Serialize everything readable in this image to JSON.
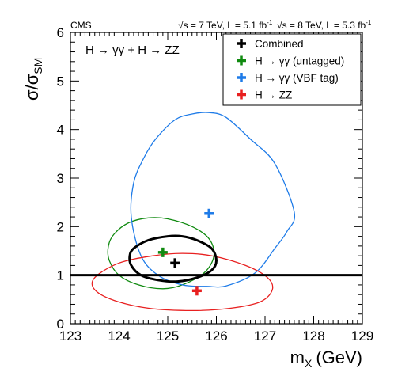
{
  "header": {
    "experiment": "CMS",
    "lumi_7tev": "√s = 7 TeV, L = 5.1 fb",
    "lumi_8tev": "√s = 8 TeV, L = 5.3 fb",
    "lumi_sup": "-1"
  },
  "annotation": "H → γγ + H → ZZ",
  "chart_data": {
    "type": "scatter",
    "title": "",
    "xlabel": "m",
    "xlabel_sub": "X",
    "xlabel_unit": "(GeV)",
    "ylabel": "σ/σ",
    "ylabel_sub": "SM",
    "xlim": [
      123,
      129
    ],
    "ylim": [
      0,
      6
    ],
    "xticks": [
      "123",
      "124",
      "125",
      "126",
      "127",
      "128",
      "129"
    ],
    "yticks": [
      "0",
      "1",
      "2",
      "3",
      "4",
      "5",
      "6"
    ],
    "reference_line_y": 1,
    "legend_position": "top-right",
    "series": [
      {
        "name": "Combined",
        "color": "#000000",
        "point": [
          125.15,
          1.25
        ],
        "contour": [
          [
            124.3,
            1.55
          ],
          [
            124.6,
            1.72
          ],
          [
            125.0,
            1.8
          ],
          [
            125.3,
            1.8
          ],
          [
            125.6,
            1.72
          ],
          [
            125.9,
            1.55
          ],
          [
            126.0,
            1.3
          ],
          [
            125.9,
            1.1
          ],
          [
            125.6,
            0.95
          ],
          [
            125.2,
            0.87
          ],
          [
            124.8,
            0.9
          ],
          [
            124.45,
            1.0
          ],
          [
            124.25,
            1.2
          ],
          [
            124.22,
            1.4
          ]
        ]
      },
      {
        "name": "H → γγ (untagged)",
        "color": "#108A10",
        "point": [
          124.9,
          1.47
        ],
        "contour": [
          [
            123.9,
            1.85
          ],
          [
            124.2,
            2.08
          ],
          [
            124.6,
            2.18
          ],
          [
            125.0,
            2.16
          ],
          [
            125.5,
            2.0
          ],
          [
            125.85,
            1.75
          ],
          [
            125.95,
            1.4
          ],
          [
            125.75,
            1.05
          ],
          [
            125.3,
            0.8
          ],
          [
            124.9,
            0.72
          ],
          [
            124.4,
            0.8
          ],
          [
            124.0,
            1.0
          ],
          [
            123.8,
            1.3
          ],
          [
            123.78,
            1.6
          ]
        ]
      },
      {
        "name": "H → γγ (VBF tag)",
        "color": "#1E7BE8",
        "point": [
          125.85,
          2.27
        ],
        "contour": [
          [
            124.75,
            3.8
          ],
          [
            125.15,
            4.2
          ],
          [
            125.5,
            4.32
          ],
          [
            125.85,
            4.35
          ],
          [
            126.2,
            4.25
          ],
          [
            126.7,
            3.8
          ],
          [
            127.2,
            3.3
          ],
          [
            127.6,
            2.3
          ],
          [
            127.45,
            1.9
          ],
          [
            127.2,
            1.55
          ],
          [
            126.8,
            1.05
          ],
          [
            126.2,
            0.78
          ],
          [
            125.8,
            0.77
          ],
          [
            125.3,
            0.8
          ],
          [
            124.8,
            1.0
          ],
          [
            124.45,
            1.4
          ],
          [
            124.25,
            2.2
          ],
          [
            124.3,
            2.9
          ],
          [
            124.5,
            3.4
          ]
        ]
      },
      {
        "name": "H → ZZ",
        "color": "#E82020",
        "point": [
          125.6,
          0.68
        ],
        "contour": [
          [
            123.5,
            0.95
          ],
          [
            124.0,
            1.25
          ],
          [
            124.7,
            1.4
          ],
          [
            125.3,
            1.45
          ],
          [
            125.9,
            1.4
          ],
          [
            126.6,
            1.2
          ],
          [
            127.05,
            0.95
          ],
          [
            127.15,
            0.7
          ],
          [
            126.9,
            0.45
          ],
          [
            126.3,
            0.32
          ],
          [
            125.5,
            0.27
          ],
          [
            124.6,
            0.32
          ],
          [
            123.9,
            0.48
          ],
          [
            123.5,
            0.7
          ]
        ]
      }
    ]
  }
}
